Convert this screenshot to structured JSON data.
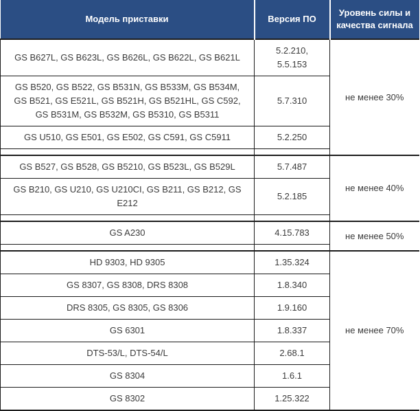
{
  "table": {
    "columns": [
      "Модель приставки",
      "Версия ПО",
      "Уровень силы и качества сигнала"
    ],
    "groups": [
      {
        "signal": "не менее 30%",
        "rows": [
          {
            "models": "GS B627L, GS B623L, GS B626L, GS B622L, GS B621L",
            "version": "5.2.210,\n5.5.153"
          },
          {
            "models": "GS B520, GS B522, GS B531N, GS B533M, GS B534M, GS B521, GS E521L, GS B521H, GS B521HL, GS C592, GS B531M, GS B532M, GS B5310, GS B5311",
            "version": "5.7.310"
          },
          {
            "models": "GS U510, GS E501, GS E502, GS C591, GS C5911",
            "version": "5.2.250"
          }
        ]
      },
      {
        "signal": "не менее 40%",
        "rows": [
          {
            "models": "GS B527, GS B528, GS B5210, GS B523L, GS B529L",
            "version": "5.7.487"
          },
          {
            "models": "GS B210, GS U210, GS U210CI, GS B211, GS B212, GS E212",
            "version": "5.2.185"
          }
        ]
      },
      {
        "signal": "не менее 50%",
        "rows": [
          {
            "models": "GS A230",
            "version": "4.15.783"
          }
        ]
      },
      {
        "signal": "не менее 70%",
        "rows": [
          {
            "models": "HD 9303, HD 9305",
            "version": "1.35.324"
          },
          {
            "models": "GS 8307, GS 8308, DRS 8308",
            "version": "1.8.340"
          },
          {
            "models": "DRS 8305, GS 8305, GS 8306",
            "version": "1.9.160"
          },
          {
            "models": "GS 6301",
            "version": "1.8.337"
          },
          {
            "models": "DTS-53/L, DTS-54/L",
            "version": "2.68.1"
          },
          {
            "models": "GS 8304",
            "version": "1.6.1"
          },
          {
            "models": "GS 8302",
            "version": "1.25.322"
          }
        ]
      }
    ],
    "colors": {
      "header_bg": "#2b4e84",
      "header_text": "#ffffff",
      "border": "#1b1b1b",
      "body_text": "#3a3a3a"
    }
  }
}
